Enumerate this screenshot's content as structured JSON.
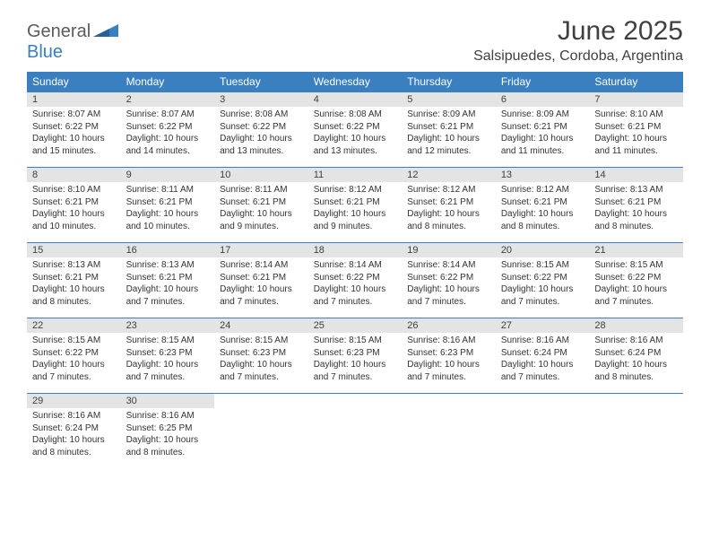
{
  "logo": {
    "part1": "General",
    "part2": "Blue"
  },
  "title": "June 2025",
  "subtitle": "Salsipuedes, Cordoba, Argentina",
  "colors": {
    "header_bg": "#3a7fbf",
    "header_text": "#ffffff",
    "daynum_bg": "#e4e4e4",
    "daynum_text": "#404040",
    "body_text": "#333333",
    "rule": "#3a7fbf",
    "page_bg": "#ffffff"
  },
  "fonts": {
    "title_size": 30,
    "subtitle_size": 16,
    "th_size": 12,
    "daynum_size": 11,
    "body_size": 10
  },
  "weekdays": [
    "Sunday",
    "Monday",
    "Tuesday",
    "Wednesday",
    "Thursday",
    "Friday",
    "Saturday"
  ],
  "days": [
    {
      "n": 1,
      "sunrise": "8:07 AM",
      "sunset": "6:22 PM",
      "daylight": "10 hours and 15 minutes."
    },
    {
      "n": 2,
      "sunrise": "8:07 AM",
      "sunset": "6:22 PM",
      "daylight": "10 hours and 14 minutes."
    },
    {
      "n": 3,
      "sunrise": "8:08 AM",
      "sunset": "6:22 PM",
      "daylight": "10 hours and 13 minutes."
    },
    {
      "n": 4,
      "sunrise": "8:08 AM",
      "sunset": "6:22 PM",
      "daylight": "10 hours and 13 minutes."
    },
    {
      "n": 5,
      "sunrise": "8:09 AM",
      "sunset": "6:21 PM",
      "daylight": "10 hours and 12 minutes."
    },
    {
      "n": 6,
      "sunrise": "8:09 AM",
      "sunset": "6:21 PM",
      "daylight": "10 hours and 11 minutes."
    },
    {
      "n": 7,
      "sunrise": "8:10 AM",
      "sunset": "6:21 PM",
      "daylight": "10 hours and 11 minutes."
    },
    {
      "n": 8,
      "sunrise": "8:10 AM",
      "sunset": "6:21 PM",
      "daylight": "10 hours and 10 minutes."
    },
    {
      "n": 9,
      "sunrise": "8:11 AM",
      "sunset": "6:21 PM",
      "daylight": "10 hours and 10 minutes."
    },
    {
      "n": 10,
      "sunrise": "8:11 AM",
      "sunset": "6:21 PM",
      "daylight": "10 hours and 9 minutes."
    },
    {
      "n": 11,
      "sunrise": "8:12 AM",
      "sunset": "6:21 PM",
      "daylight": "10 hours and 9 minutes."
    },
    {
      "n": 12,
      "sunrise": "8:12 AM",
      "sunset": "6:21 PM",
      "daylight": "10 hours and 8 minutes."
    },
    {
      "n": 13,
      "sunrise": "8:12 AM",
      "sunset": "6:21 PM",
      "daylight": "10 hours and 8 minutes."
    },
    {
      "n": 14,
      "sunrise": "8:13 AM",
      "sunset": "6:21 PM",
      "daylight": "10 hours and 8 minutes."
    },
    {
      "n": 15,
      "sunrise": "8:13 AM",
      "sunset": "6:21 PM",
      "daylight": "10 hours and 8 minutes."
    },
    {
      "n": 16,
      "sunrise": "8:13 AM",
      "sunset": "6:21 PM",
      "daylight": "10 hours and 7 minutes."
    },
    {
      "n": 17,
      "sunrise": "8:14 AM",
      "sunset": "6:21 PM",
      "daylight": "10 hours and 7 minutes."
    },
    {
      "n": 18,
      "sunrise": "8:14 AM",
      "sunset": "6:22 PM",
      "daylight": "10 hours and 7 minutes."
    },
    {
      "n": 19,
      "sunrise": "8:14 AM",
      "sunset": "6:22 PM",
      "daylight": "10 hours and 7 minutes."
    },
    {
      "n": 20,
      "sunrise": "8:15 AM",
      "sunset": "6:22 PM",
      "daylight": "10 hours and 7 minutes."
    },
    {
      "n": 21,
      "sunrise": "8:15 AM",
      "sunset": "6:22 PM",
      "daylight": "10 hours and 7 minutes."
    },
    {
      "n": 22,
      "sunrise": "8:15 AM",
      "sunset": "6:22 PM",
      "daylight": "10 hours and 7 minutes."
    },
    {
      "n": 23,
      "sunrise": "8:15 AM",
      "sunset": "6:23 PM",
      "daylight": "10 hours and 7 minutes."
    },
    {
      "n": 24,
      "sunrise": "8:15 AM",
      "sunset": "6:23 PM",
      "daylight": "10 hours and 7 minutes."
    },
    {
      "n": 25,
      "sunrise": "8:15 AM",
      "sunset": "6:23 PM",
      "daylight": "10 hours and 7 minutes."
    },
    {
      "n": 26,
      "sunrise": "8:16 AM",
      "sunset": "6:23 PM",
      "daylight": "10 hours and 7 minutes."
    },
    {
      "n": 27,
      "sunrise": "8:16 AM",
      "sunset": "6:24 PM",
      "daylight": "10 hours and 7 minutes."
    },
    {
      "n": 28,
      "sunrise": "8:16 AM",
      "sunset": "6:24 PM",
      "daylight": "10 hours and 8 minutes."
    },
    {
      "n": 29,
      "sunrise": "8:16 AM",
      "sunset": "6:24 PM",
      "daylight": "10 hours and 8 minutes."
    },
    {
      "n": 30,
      "sunrise": "8:16 AM",
      "sunset": "6:25 PM",
      "daylight": "10 hours and 8 minutes."
    }
  ],
  "labels": {
    "sunrise": "Sunrise:",
    "sunset": "Sunset:",
    "daylight": "Daylight:"
  },
  "start_weekday": 0,
  "table": {
    "type": "calendar",
    "cols": 7,
    "rows": 5
  }
}
